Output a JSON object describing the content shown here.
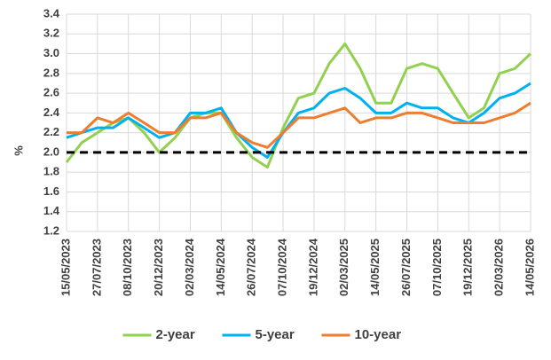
{
  "chart_data": {
    "type": "line",
    "y_label": "%",
    "x": [
      "15/05/2023",
      "20/06/2023",
      "27/07/2023",
      "02/09/2023",
      "08/10/2023",
      "14/11/2023",
      "20/12/2023",
      "26/01/2024",
      "02/03/2024",
      "07/04/2024",
      "14/05/2024",
      "19/06/2024",
      "26/07/2024",
      "31/08/2024",
      "07/10/2024",
      "12/11/2024",
      "19/12/2024",
      "24/01/2025",
      "02/03/2025",
      "07/04/2025",
      "14/05/2025",
      "19/06/2025",
      "26/07/2025",
      "31/08/2025",
      "07/10/2025",
      "12/11/2025",
      "19/12/2025",
      "24/01/2026",
      "02/03/2026",
      "07/04/2026",
      "14/05/2026"
    ],
    "series": [
      {
        "name": "2-year",
        "color": "#92d050",
        "values": [
          1.9,
          2.1,
          2.2,
          2.3,
          2.35,
          2.2,
          2.0,
          2.15,
          2.35,
          2.4,
          2.4,
          2.15,
          1.95,
          1.85,
          2.25,
          2.55,
          2.6,
          2.9,
          3.1,
          2.85,
          2.5,
          2.5,
          2.85,
          2.9,
          2.85,
          2.6,
          2.35,
          2.45,
          2.8,
          2.85,
          3.0
        ]
      },
      {
        "name": "5-year",
        "color": "#00b0f0",
        "values": [
          2.15,
          2.2,
          2.25,
          2.25,
          2.35,
          2.25,
          2.15,
          2.2,
          2.4,
          2.4,
          2.45,
          2.2,
          2.05,
          1.95,
          2.2,
          2.4,
          2.45,
          2.6,
          2.65,
          2.55,
          2.4,
          2.4,
          2.5,
          2.45,
          2.45,
          2.35,
          2.3,
          2.4,
          2.55,
          2.6,
          2.7
        ]
      },
      {
        "name": "10-year",
        "color": "#ed7d31",
        "values": [
          2.2,
          2.2,
          2.35,
          2.3,
          2.4,
          2.3,
          2.2,
          2.2,
          2.35,
          2.35,
          2.4,
          2.2,
          2.1,
          2.05,
          2.2,
          2.35,
          2.35,
          2.4,
          2.45,
          2.3,
          2.35,
          2.35,
          2.4,
          2.4,
          2.35,
          2.3,
          2.3,
          2.3,
          2.35,
          2.4,
          2.5
        ]
      }
    ],
    "reference_line": 2,
    "xlim": [
      "15/05/2023",
      "14/05/2026"
    ],
    "xticks": [
      "15/05/2023",
      "27/07/2023",
      "08/10/2023",
      "20/12/2023",
      "02/03/2024",
      "14/05/2024",
      "26/07/2024",
      "07/10/2024",
      "19/12/2024",
      "02/03/2025",
      "14/05/2025",
      "26/07/2025",
      "07/10/2025",
      "19/12/2025",
      "02/03/2026",
      "14/05/2026"
    ],
    "ylim": [
      1.2,
      3.4
    ],
    "yticks": [
      1.2,
      1.4,
      1.6,
      1.8,
      {
        "value": 2,
        "label": "2.0"
      },
      2.2,
      2.4,
      2.6,
      2.8,
      {
        "value": 3,
        "label": "3.0"
      },
      3.2,
      3.4
    ],
    "grid": true,
    "legend": "bottom"
  }
}
